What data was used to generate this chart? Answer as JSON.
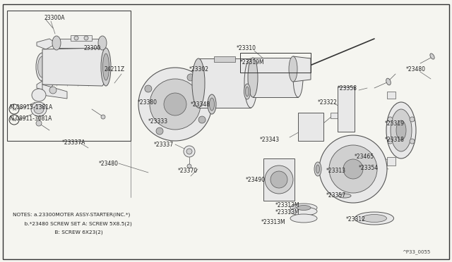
{
  "bg_color": "#f5f5f0",
  "line_color": "#555555",
  "text_color": "#222222",
  "diagram_ref": "^P33_0055",
  "notes_line1": "NOTES: a.23300MOTER ASSY-STARTER(INC.*)",
  "notes_line2": "       b.*23480 SCREW SET A: SCREW 5X8.5(2)",
  "notes_line3": "                         B: SCREW 6X23(2)",
  "figsize": [
    6.4,
    3.72
  ],
  "dpi": 100
}
